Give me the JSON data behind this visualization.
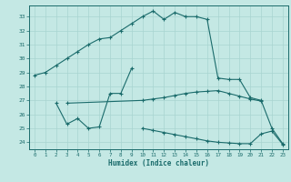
{
  "xlabel": "Humidex (Indice chaleur)",
  "bg_color": "#c4e8e4",
  "line_color": "#1a6b6b",
  "grid_color": "#a8d4d0",
  "xlim": [
    -0.5,
    23.5
  ],
  "ylim": [
    23.5,
    33.8
  ],
  "yticks": [
    24,
    25,
    26,
    27,
    28,
    29,
    30,
    31,
    32,
    33
  ],
  "xticks": [
    0,
    1,
    2,
    3,
    4,
    5,
    6,
    7,
    8,
    9,
    10,
    11,
    12,
    13,
    14,
    15,
    16,
    17,
    18,
    19,
    20,
    21,
    22,
    23
  ],
  "line1_x": [
    0,
    1,
    2,
    3,
    4,
    5,
    6,
    7,
    8,
    9,
    10,
    11,
    12,
    13,
    14,
    15,
    16,
    17,
    18,
    19,
    20,
    21,
    22,
    23
  ],
  "line1_y": [
    28.8,
    29.0,
    29.5,
    30.0,
    30.5,
    31.0,
    31.4,
    31.5,
    32.0,
    32.5,
    33.0,
    33.4,
    32.8,
    33.3,
    33.0,
    33.0,
    32.8,
    28.6,
    28.5,
    28.5,
    27.2,
    27.0,
    25.0,
    23.9
  ],
  "line2_x": [
    2,
    3,
    4,
    5,
    6,
    7,
    8,
    9
  ],
  "line2_y": [
    26.8,
    25.3,
    25.7,
    25.0,
    25.1,
    27.5,
    27.5,
    29.3
  ],
  "line3_x": [
    3,
    10,
    11,
    12,
    13,
    14,
    15,
    16,
    17,
    18,
    19,
    20,
    21
  ],
  "line3_y": [
    26.8,
    27.0,
    27.1,
    27.2,
    27.35,
    27.5,
    27.6,
    27.65,
    27.7,
    27.5,
    27.3,
    27.1,
    26.95
  ],
  "line4_x": [
    10,
    11,
    12,
    13,
    14,
    15,
    16,
    17,
    18,
    19,
    20,
    21,
    22,
    23
  ],
  "line4_y": [
    25.0,
    24.85,
    24.7,
    24.55,
    24.4,
    24.25,
    24.1,
    24.0,
    23.95,
    23.9,
    23.9,
    24.6,
    24.8,
    23.85
  ]
}
